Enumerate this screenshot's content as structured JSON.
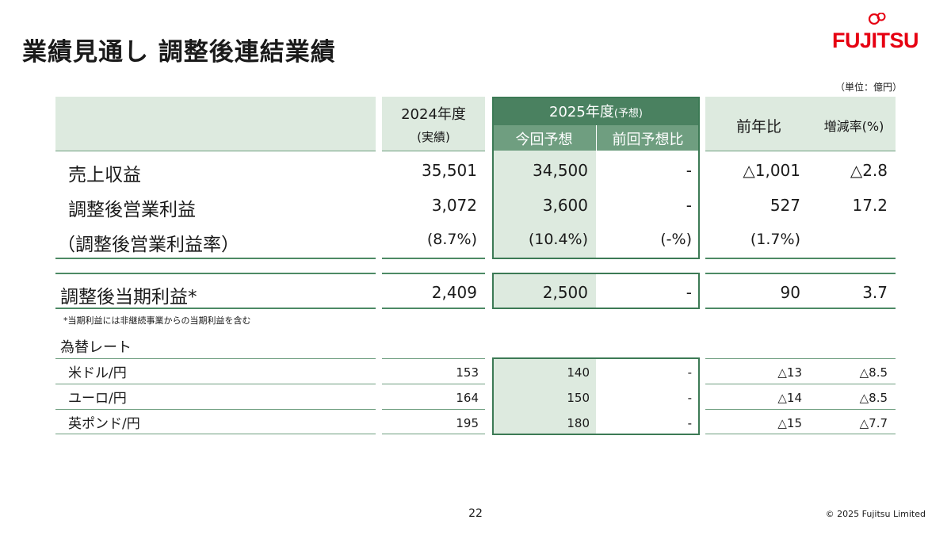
{
  "title": "業績見通し 調整後連結業績",
  "logo_text": "FUJITSU",
  "unit_note": "（単位：億円）",
  "header": {
    "fy2024_year": "2024年度",
    "fy2024_sub": "(実績)",
    "fy2025_year": "2025年度",
    "fy2025_suffix": "(予想)",
    "current_forecast": "今回予想",
    "previous_forecast": "前回予想比",
    "yoy": "前年比",
    "change_rate": "増減率(%)"
  },
  "rows": [
    {
      "label": "売上収益",
      "fy2024": "35,501",
      "current": "34,500",
      "previous": "-",
      "yoy": "△1,001",
      "rate": "△2.8"
    },
    {
      "label": "調整後営業利益",
      "fy2024": "3,072",
      "current": "3,600",
      "previous": "-",
      "yoy": "527",
      "rate": "17.2"
    },
    {
      "label": "（調整後営業利益率）",
      "fy2024": "(8.7%)",
      "current": "(10.4%)",
      "previous": "(-%)",
      "yoy": "(1.7%)",
      "rate": ""
    }
  ],
  "net_income_row": {
    "label": "調整後当期利益*",
    "fy2024": "2,409",
    "current": "2,500",
    "previous": "-",
    "yoy": "90",
    "rate": "3.7"
  },
  "footnote": "*当期利益には非継続事業からの当期利益を含む",
  "fx_title": "為替レート",
  "fx_rows": [
    {
      "label": "米ドル/円",
      "fy2024": "153",
      "current": "140",
      "previous": "-",
      "yoy": "△13",
      "rate": "△8.5"
    },
    {
      "label": "ユーロ/円",
      "fy2024": "164",
      "current": "150",
      "previous": "-",
      "yoy": "△14",
      "rate": "△8.5"
    },
    {
      "label": "英ポンド/円",
      "fy2024": "195",
      "current": "180",
      "previous": "-",
      "yoy": "△15",
      "rate": "△7.7"
    }
  ],
  "page_number": "22",
  "copyright": "© 2025 Fujitsu Limited",
  "colors": {
    "brand_red": "#e60012",
    "accent_green": "#3c7a55",
    "light_green": "#ddeadf"
  }
}
